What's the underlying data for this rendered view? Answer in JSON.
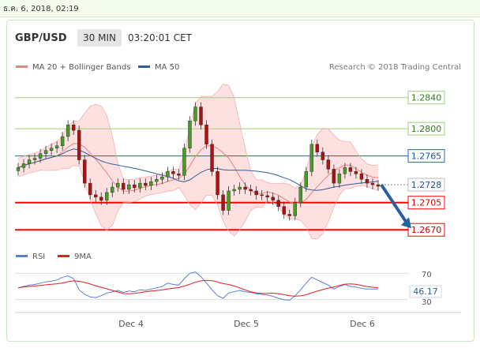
{
  "date_bar": {
    "text": "ธ.ค. 6, 2018, 02:19"
  },
  "header": {
    "symbol": "GBP/USD",
    "interval": "30 MIN",
    "time": "03:20:01 CET"
  },
  "legend": {
    "bollinger_label": "MA 20 + Bollinger Bands",
    "ma50_label": "MA 50",
    "credit": "Research © 2018 Trading Central"
  },
  "colors": {
    "bollinger": "#f08080",
    "band_fill": "#fde0e0",
    "ma50": "#2f5f9e",
    "support": "#ff0000",
    "resistance_blue": "#1f5fcf",
    "green_level": "#9bd07a",
    "arrow": "#2a5f9e",
    "candle_up": "#4a9a2a",
    "candle_down": "#b01010",
    "rsi": "#5b7fd4",
    "rsi_ma": "#e02020"
  },
  "price_levels": [
    {
      "value": "1.2840",
      "style": "green"
    },
    {
      "value": "1.2800",
      "style": "green"
    },
    {
      "value": "1.2765",
      "style": "blue"
    },
    {
      "value": "1.2728",
      "style": "dotted"
    },
    {
      "value": "1.2705",
      "style": "red"
    },
    {
      "value": "1.2670",
      "style": "red"
    }
  ],
  "rsi_panel": {
    "rsi_label": "RSI",
    "ma_label": "9MA",
    "levels": [
      "70",
      "30"
    ],
    "current": "46.17"
  },
  "x_axis": {
    "labels": [
      "Dec 4",
      "Dec 5",
      "Dec 6"
    ]
  },
  "chart_data": {
    "type": "candlestick",
    "y_range": [
      1.2655,
      1.2858
    ],
    "rsi_range": [
      20,
      80
    ],
    "x_labels": [
      "Dec 4",
      "Dec 5",
      "Dec 6"
    ],
    "levels": [
      1.284,
      1.28,
      1.2765,
      1.2728,
      1.2705,
      1.267
    ],
    "close": [
      1.275,
      1.2755,
      1.276,
      1.2762,
      1.2768,
      1.2772,
      1.2775,
      1.2778,
      1.279,
      1.2805,
      1.2798,
      1.276,
      1.273,
      1.2715,
      1.2712,
      1.2708,
      1.2718,
      1.2725,
      1.273,
      1.2722,
      1.2728,
      1.2724,
      1.273,
      1.2727,
      1.2732,
      1.2735,
      1.2738,
      1.2745,
      1.2742,
      1.274,
      1.2775,
      1.281,
      1.2828,
      1.2805,
      1.278,
      1.2745,
      1.2715,
      1.2695,
      1.272,
      1.2722,
      1.2725,
      1.2722,
      1.272,
      1.2715,
      1.2714,
      1.2712,
      1.2708,
      1.27,
      1.269,
      1.2688,
      1.2705,
      1.2725,
      1.2745,
      1.278,
      1.277,
      1.276,
      1.2748,
      1.273,
      1.2742,
      1.275,
      1.2745,
      1.2742,
      1.2735,
      1.273,
      1.2728,
      1.2726
    ],
    "rsi": [
      48,
      50,
      52,
      53,
      55,
      57,
      58,
      60,
      64,
      66,
      62,
      45,
      38,
      34,
      33,
      36,
      40,
      42,
      44,
      41,
      43,
      42,
      45,
      44,
      46,
      48,
      50,
      55,
      53,
      52,
      62,
      70,
      72,
      65,
      55,
      45,
      36,
      32,
      40,
      42,
      44,
      42,
      41,
      39,
      38,
      37,
      35,
      32,
      30,
      29,
      36,
      45,
      55,
      64,
      60,
      56,
      52,
      46,
      50,
      53,
      50,
      49,
      47,
      46,
      46,
      46.17
    ]
  }
}
